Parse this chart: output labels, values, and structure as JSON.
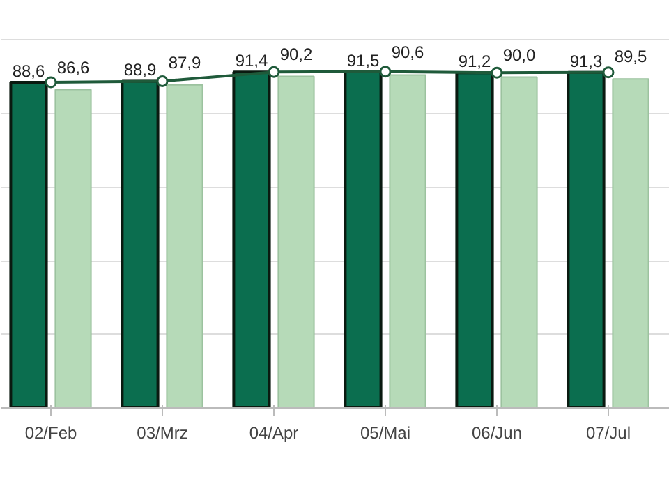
{
  "chart_data": {
    "type": "bar",
    "categories": [
      "02/Feb",
      "03/Mrz",
      "04/Apr",
      "05/Mai",
      "06/Jun",
      "07/Jul"
    ],
    "series": [
      {
        "color": "#0b6e4f",
        "values": [
          88.6,
          88.9,
          91.4,
          91.5,
          91.2,
          91.3
        ],
        "value_labels": [
          "88,6",
          "88,9",
          "91,4",
          "91,5",
          "91,2",
          "91,3"
        ]
      },
      {
        "color": "#b6dab8",
        "values": [
          86.6,
          87.9,
          90.2,
          90.6,
          90.0,
          89.5
        ],
        "value_labels": [
          "86,6",
          "87,9",
          "90,2",
          "90,6",
          "90,0",
          "89,5"
        ]
      },
      {
        "type": "line",
        "color": "#1f5a3a",
        "values": [
          88.6,
          88.9,
          91.4,
          91.5,
          91.2,
          91.3
        ]
      }
    ],
    "ylim": [
      0,
      100
    ],
    "yticks": [
      {
        "value": 0,
        "label": null
      },
      {
        "value": 20,
        "label": null
      },
      {
        "value": 40,
        "label": null
      },
      {
        "value": 60,
        "label": null
      },
      {
        "value": 80,
        "label": null
      },
      {
        "value": 100,
        "label": null
      }
    ],
    "tick_labels": "x",
    "grid": "y",
    "marker": "circle"
  }
}
